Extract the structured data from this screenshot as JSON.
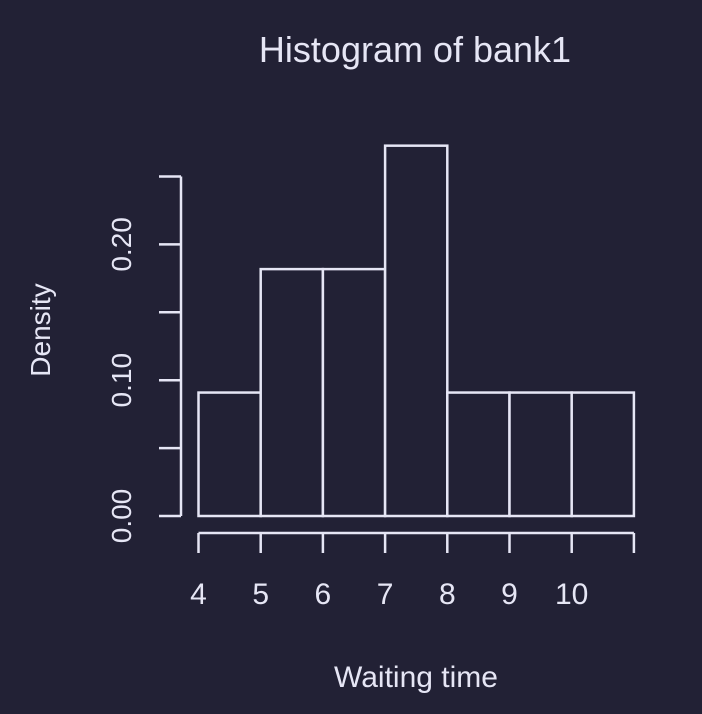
{
  "chart_data": {
    "type": "bar",
    "title": "Histogram of bank1",
    "xlabel": "Waiting time",
    "ylabel": "Density",
    "bins": [
      {
        "x0": 4,
        "x1": 5,
        "density": 0.0909
      },
      {
        "x0": 5,
        "x1": 6,
        "density": 0.1818
      },
      {
        "x0": 6,
        "x1": 7,
        "density": 0.1818
      },
      {
        "x0": 7,
        "x1": 8,
        "density": 0.2727
      },
      {
        "x0": 8,
        "x1": 9,
        "density": 0.0909
      },
      {
        "x0": 9,
        "x1": 10,
        "density": 0.0909
      },
      {
        "x0": 10,
        "x1": 11,
        "density": 0.0909
      }
    ],
    "xlim": [
      4,
      11
    ],
    "ylim": [
      0,
      0.25
    ],
    "x_ticks": [
      4,
      5,
      6,
      7,
      8,
      9,
      10,
      11
    ],
    "x_tick_labels": [
      "4",
      "5",
      "6",
      "7",
      "8",
      "9",
      "10",
      ""
    ],
    "y_ticks": [
      0,
      0.05,
      0.1,
      0.15,
      0.2,
      0.25
    ],
    "y_tick_labels": [
      "0.00",
      "",
      "0.10",
      "",
      "0.20",
      ""
    ],
    "grid": false,
    "colors": {
      "background": "#222135",
      "foreground": "#e6e6f5"
    }
  }
}
